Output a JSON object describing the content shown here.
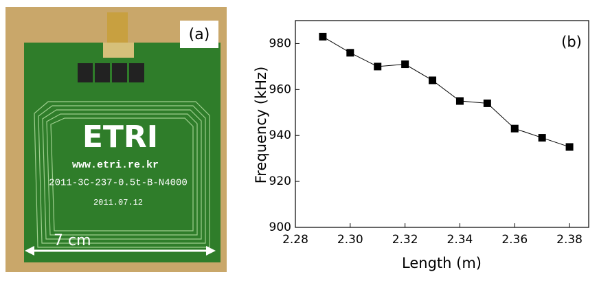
{
  "photo": {
    "label": "(a)",
    "scale": "7 cm",
    "board_texts": [
      "ETRI",
      "www.etri.re.kr",
      "2011-3C-237-0.5t-B-N4000",
      "2011.07.12"
    ]
  },
  "chart_data": {
    "type": "line",
    "annotation": "(b)",
    "x_label": "Length (m)",
    "y_label": "Frequency (kHz)",
    "x": [
      2.29,
      2.3,
      2.31,
      2.32,
      2.33,
      2.34,
      2.35,
      2.36,
      2.37,
      2.38
    ],
    "values": [
      983,
      976,
      970,
      971,
      964,
      955,
      954,
      943,
      939,
      935
    ],
    "color": "#000000",
    "marker": "square",
    "xlim": [
      2.28,
      2.387
    ],
    "ylim": [
      900,
      990
    ],
    "xticks": [
      2.28,
      {
        "value": 2.3,
        "label": "2.30"
      },
      2.32,
      2.34,
      2.36,
      2.38
    ],
    "yticks": [
      900,
      920,
      940,
      960,
      980
    ]
  }
}
